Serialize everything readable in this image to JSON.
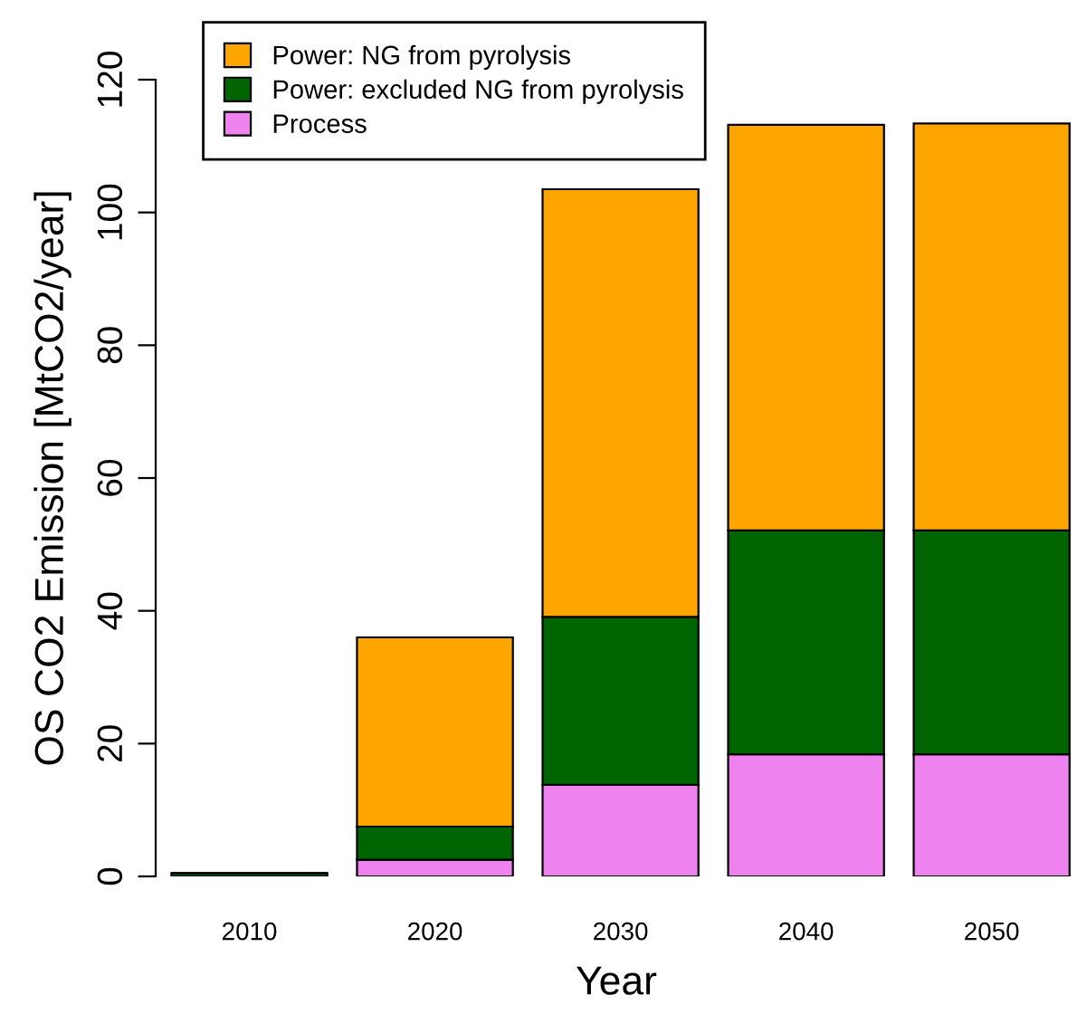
{
  "chart_data": {
    "type": "bar",
    "stacked": true,
    "categories": [
      "2010",
      "2020",
      "2030",
      "2040",
      "2050"
    ],
    "xlabel": "Year",
    "ylabel": "OS CO2 Emission [MtCO2/year]",
    "series": [
      {
        "name": "Process",
        "color": "#ee82ee",
        "values": [
          null,
          2.5,
          13.8,
          18.4,
          18.4
        ]
      },
      {
        "name": "Power: excluded NG from pyrolysis",
        "color": "#006400",
        "values": [
          0.5,
          5.0,
          25.3,
          33.7,
          33.7
        ]
      },
      {
        "name": "Power: NG from pyrolysis",
        "color": "#ffa500",
        "values": [
          null,
          28.5,
          64.4,
          61.1,
          61.3
        ]
      }
    ],
    "ylim": [
      0,
      120
    ],
    "yticks": [
      0,
      20,
      40,
      60,
      80,
      100,
      120
    ],
    "legend": "top left",
    "grid": false
  }
}
